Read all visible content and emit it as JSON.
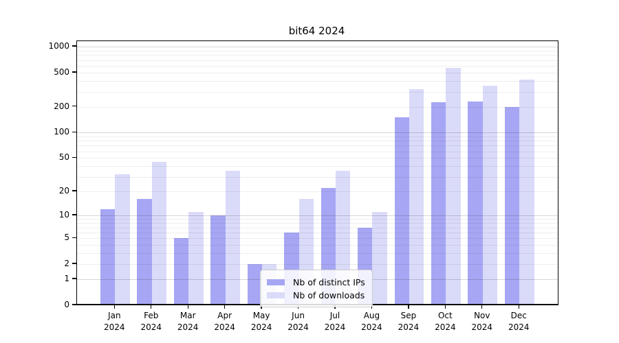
{
  "chart_data": {
    "type": "bar",
    "title": "bit64 2024",
    "categories": [
      "Jan 2024",
      "Feb 2024",
      "Mar 2024",
      "Apr 2024",
      "May 2024",
      "Jun 2024",
      "Jul 2024",
      "Aug 2024",
      "Sep 2024",
      "Oct 2024",
      "Nov 2024",
      "Dec 2024"
    ],
    "series": [
      {
        "name": "Nb of distinct IPs",
        "color": "#a6a6f4",
        "values": [
          12,
          16,
          5,
          10,
          2,
          6,
          22,
          7,
          150,
          225,
          230,
          200
        ]
      },
      {
        "name": "Nb of downloads",
        "color": "#dadaf9",
        "values": [
          32,
          45,
          11,
          35,
          2,
          16,
          35,
          11,
          320,
          570,
          350,
          415
        ]
      }
    ],
    "yscale": "log1p",
    "yticks": [
      0,
      1,
      2,
      5,
      10,
      20,
      50,
      100,
      200,
      500,
      1000
    ],
    "ylim": [
      0,
      1160
    ],
    "grid": "both-major-and-minor",
    "legend_position": "lower center"
  }
}
